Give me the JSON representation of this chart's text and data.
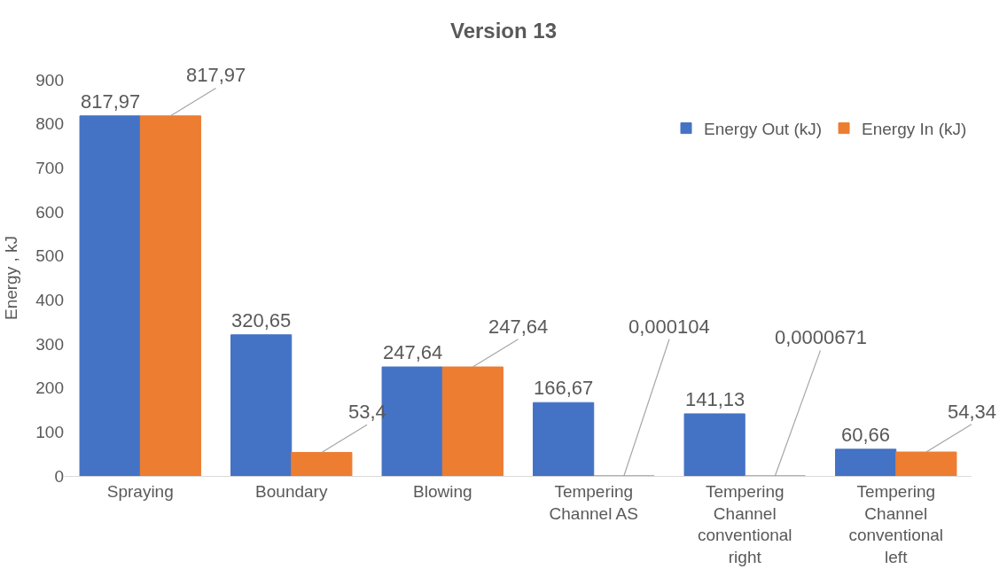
{
  "chart_data": {
    "type": "bar",
    "title": "Version 13",
    "ylabel": "Energy , kJ",
    "categories": [
      "Spraying",
      "Boundary",
      "Blowing",
      "Tempering Channel AS",
      "Tempering Channel conventional right",
      "Tempering Channel conventional left"
    ],
    "series": [
      {
        "name": "Energy Out (kJ)",
        "color": "#4472c4",
        "values": [
          817.97,
          320.65,
          247.64,
          166.67,
          141.13,
          60.66
        ],
        "value_labels": [
          "817,97",
          "320,65",
          "247,64",
          "166,67",
          "141,13",
          "60,66"
        ]
      },
      {
        "name": "Energy In (kJ)",
        "color": "#ed7d31",
        "values": [
          817.97,
          53.4,
          247.64,
          0.000104,
          6.71e-05,
          54.34
        ],
        "value_labels": [
          "817,97",
          "53,4",
          "247,64",
          "0,000104",
          "0,0000671",
          "54,34"
        ]
      }
    ],
    "ylim": [
      0,
      900
    ],
    "yticks": [
      0,
      100,
      200,
      300,
      400,
      500,
      600,
      700,
      800,
      900
    ],
    "grid": false,
    "legend": "top right"
  }
}
